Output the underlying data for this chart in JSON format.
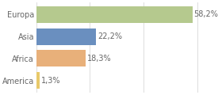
{
  "categories": [
    "Europa",
    "Asia",
    "Africa",
    "America"
  ],
  "values": [
    58.2,
    22.2,
    18.3,
    1.3
  ],
  "bar_colors": [
    "#b5c98e",
    "#6a8fbf",
    "#e8b07a",
    "#e8c96a"
  ],
  "labels": [
    "58,2%",
    "22,2%",
    "18,3%",
    "1,3%"
  ],
  "xlim": [
    0,
    68
  ],
  "background_color": "#ffffff",
  "bar_height": 0.75,
  "text_color": "#666666",
  "grid_color": "#dddddd",
  "label_fontsize": 7.0,
  "grid_ticks": [
    0,
    20,
    40,
    60
  ]
}
